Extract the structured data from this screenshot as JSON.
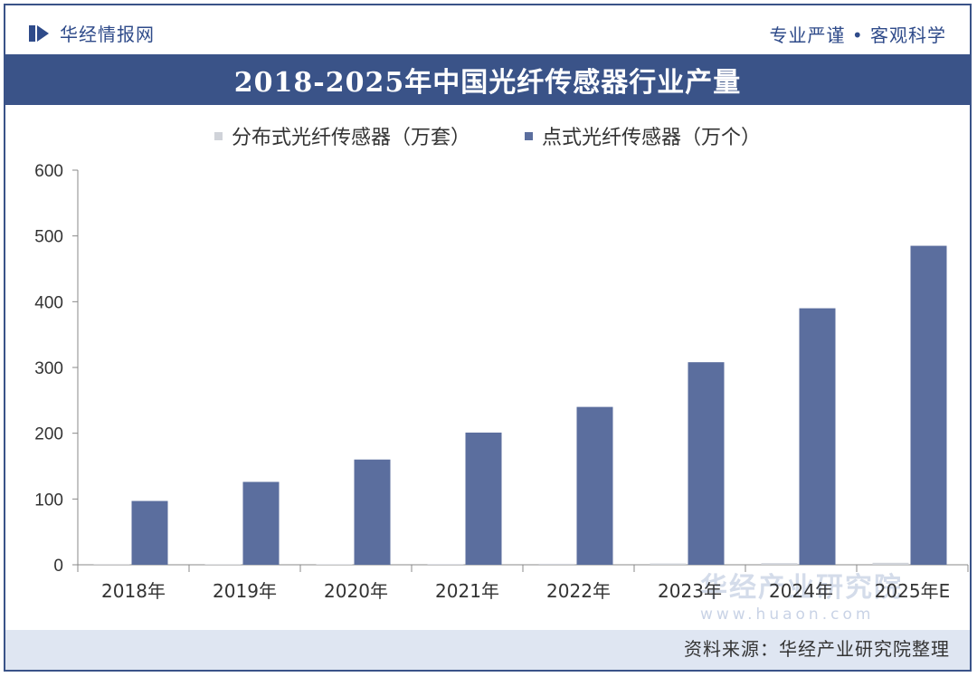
{
  "header": {
    "brand_name": "华经情报网",
    "motto": "专业严谨 • 客观科学"
  },
  "footer": {
    "source": "资料来源：华经产业研究院整理",
    "watermark_name": "华经产业研究院",
    "watermark_url": "www.huaon.com"
  },
  "colors": {
    "accent": "#3a5388",
    "bar_point": "#5b6e9e",
    "bar_distributed": "#d0d3d9",
    "footer_band": "#dfe6f2"
  },
  "chart_data": {
    "type": "bar",
    "title": "2018-2025年中国光纤传感器行业产量",
    "categories": [
      "2018年",
      "2019年",
      "2020年",
      "2021年",
      "2022年",
      "2023年",
      "2024年",
      "2025年E"
    ],
    "series": [
      {
        "name": "分布式光纤传感器（万套）",
        "values": [
          0.5,
          0.6,
          0.8,
          1.0,
          1.5,
          2.0,
          2.5,
          3.0
        ]
      },
      {
        "name": "点式光纤传感器（万个）",
        "values": [
          97,
          126,
          160,
          201,
          240,
          308,
          390,
          485
        ]
      }
    ],
    "ylim": [
      0,
      600
    ],
    "yticks": [
      0,
      100,
      200,
      300,
      400,
      500,
      600
    ],
    "xlabel": "",
    "ylabel": "",
    "legend_position": "top-center",
    "grid": false
  }
}
